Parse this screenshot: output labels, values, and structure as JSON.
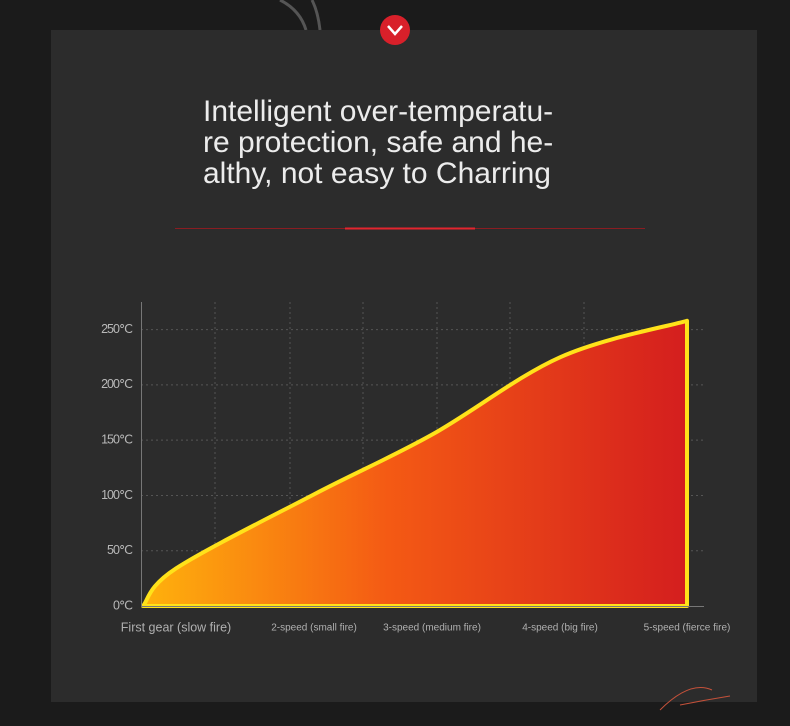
{
  "header": {
    "title_lines": [
      "Intelligent over-temperatu-",
      "re protection, safe and he-",
      "althy, not easy to Charring"
    ]
  },
  "chart_data": {
    "type": "area",
    "categories": [
      null,
      "First gear (slow fire)",
      "2-speed (small fire)",
      "3-speed (medium fire)",
      "4-speed (big fire)",
      "5-speed (fierce fire)"
    ],
    "values": [
      0,
      34,
      101,
      155,
      225,
      258
    ],
    "color": "#ffe21a",
    "ylim": [
      0,
      275
    ],
    "yticks": [
      {
        "value": 0,
        "label": "0℃"
      },
      {
        "value": 50,
        "label": "50℃"
      },
      {
        "value": 100,
        "label": "100℃"
      },
      {
        "value": 150,
        "label": "150℃"
      },
      {
        "value": 200,
        "label": "200℃"
      },
      {
        "value": 250,
        "label": "250℃"
      }
    ],
    "grid": true
  }
}
